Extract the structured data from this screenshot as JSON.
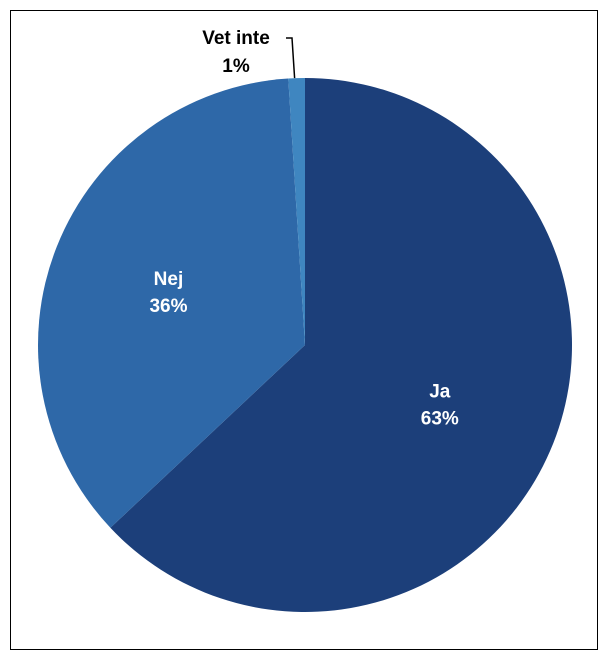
{
  "chart_data": {
    "type": "pie",
    "title": "",
    "start_angle_deg": 0,
    "direction": "clockwise",
    "slices": [
      {
        "label": "Ja",
        "value": 63,
        "display": "63%",
        "color": "#1c3f7a",
        "label_position": "inside"
      },
      {
        "label": "Nej",
        "value": 36,
        "display": "36%",
        "color": "#2e68a8",
        "label_position": "inside"
      },
      {
        "label": "Vet inte",
        "value": 1,
        "display": "1%",
        "color": "#3f86c0",
        "label_position": "outside"
      }
    ],
    "legend": "none"
  }
}
